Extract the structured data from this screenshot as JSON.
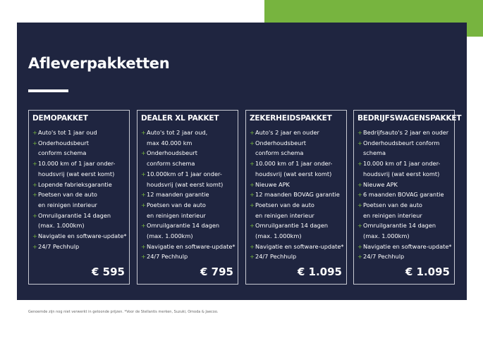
{
  "title": "Afleverpakketten",
  "colors": {
    "navy": "#1f2540",
    "accent": "#77b43f"
  },
  "packages": [
    {
      "name": "DEMOPAKKET",
      "price": "€ 595",
      "items": [
        [
          "Auto's tot 1 jaar oud"
        ],
        [
          "Onderhoudsbeurt",
          "conform schema"
        ],
        [
          "10.000 km of 1 jaar onder-",
          "houdsvrij (wat eerst komt)"
        ],
        [
          "Lopende fabrieksgarantie"
        ],
        [
          "Poetsen van de auto",
          "en reinigen interieur"
        ],
        [
          "Omruilgarantie 14 dagen",
          "(max. 1.000km)"
        ],
        [
          "Navigatie en software-update*"
        ],
        [
          "24/7 Pechhulp"
        ]
      ]
    },
    {
      "name": "DEALER XL PAKKET",
      "price": "€ 795",
      "items": [
        [
          "Auto's tot 2 jaar oud,",
          "max 40.000 km"
        ],
        [
          "Onderhoudsbeurt",
          "conform schema"
        ],
        [
          "10.000km of 1 jaar onder-",
          "houdsvrij (wat eerst komt)"
        ],
        [
          "12 maanden garantie"
        ],
        [
          "Poetsen van de auto",
          "en reinigen interieur"
        ],
        [
          "Omruilgarantie 14 dagen",
          "(max. 1.000km)"
        ],
        [
          "Navigatie en software-update*"
        ],
        [
          "24/7 Pechhulp"
        ]
      ]
    },
    {
      "name": "ZEKERHEIDSPAKKET",
      "price": "€ 1.095",
      "items": [
        [
          "Auto's 2 jaar en ouder"
        ],
        [
          "Onderhoudsbeurt",
          "conform schema"
        ],
        [
          "10.000 km of 1 jaar onder-",
          "houdsvrij (wat eerst komt)"
        ],
        [
          "Nieuwe APK"
        ],
        [
          "12 maanden BOVAG garantie"
        ],
        [
          "Poetsen van de auto",
          "en reinigen interieur"
        ],
        [
          "Omruilgarantie 14 dagen",
          "(max. 1.000km)"
        ],
        [
          "Navigatie en software-update*"
        ],
        [
          "24/7 Pechhulp"
        ]
      ]
    },
    {
      "name": "BEDRIJFSWAGENSPAKKET",
      "price": "€ 1.095",
      "items": [
        [
          "Bedrijfsauto's 2 jaar en ouder"
        ],
        [
          "Onderhoudsbeurt conform",
          "schema"
        ],
        [
          "10.000 km of 1 jaar onder-",
          "houdsvrij (wat eerst komt)"
        ],
        [
          "Nieuwe APK"
        ],
        [
          "6 maanden BOVAG garantie"
        ],
        [
          "Poetsen van de auto",
          "en reinigen interieur"
        ],
        [
          "Omruilgarantie 14 dagen",
          "(max. 1.000km)"
        ],
        [
          "Navigatie en software-update*"
        ],
        [
          "24/7 Pechhulp"
        ]
      ]
    }
  ],
  "footnote": "Genoemde zijn nog niet verwerkt in getoonde prijzen. *Voor de Stellantis merken, Suzuki, Omoda & Jaecoo."
}
